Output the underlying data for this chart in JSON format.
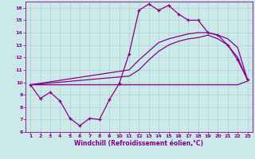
{
  "xlabel": "Windchill (Refroidissement éolien,°C)",
  "bg_color": "#cce9e9",
  "grid_color": "#b0d0d0",
  "line_color": "#880088",
  "xlim": [
    0.5,
    23.5
  ],
  "ylim": [
    6,
    16.5
  ],
  "xticks": [
    1,
    2,
    3,
    4,
    5,
    6,
    7,
    8,
    9,
    10,
    11,
    12,
    13,
    14,
    15,
    16,
    17,
    18,
    19,
    20,
    21,
    22,
    23
  ],
  "yticks": [
    6,
    7,
    8,
    9,
    10,
    11,
    12,
    13,
    14,
    15,
    16
  ],
  "series": {
    "windchill": {
      "x": [
        1,
        2,
        3,
        4,
        5,
        6,
        7,
        8,
        9,
        10,
        11,
        12,
        13,
        14,
        15,
        16,
        17,
        18,
        19,
        20,
        21,
        22,
        23
      ],
      "y": [
        9.8,
        8.7,
        9.2,
        8.5,
        7.1,
        6.5,
        7.1,
        7.0,
        8.6,
        9.9,
        12.3,
        15.8,
        16.3,
        15.8,
        16.2,
        15.5,
        15.0,
        15.0,
        14.0,
        13.8,
        13.0,
        11.8,
        10.2
      ]
    },
    "flat": {
      "x": [
        1,
        10,
        11,
        22,
        23
      ],
      "y": [
        9.8,
        9.8,
        9.8,
        9.8,
        10.1
      ]
    },
    "temp_upper": {
      "x": [
        1,
        11,
        12,
        13,
        14,
        15,
        16,
        17,
        18,
        19,
        20,
        21,
        22,
        23
      ],
      "y": [
        9.8,
        11.0,
        11.8,
        12.5,
        13.2,
        13.5,
        13.7,
        13.9,
        14.0,
        14.0,
        13.8,
        13.5,
        12.8,
        10.2
      ]
    },
    "temp_lower": {
      "x": [
        1,
        11,
        12,
        13,
        14,
        15,
        16,
        17,
        18,
        19,
        20,
        21,
        22,
        23
      ],
      "y": [
        9.8,
        10.5,
        11.0,
        11.8,
        12.5,
        13.0,
        13.3,
        13.5,
        13.6,
        13.8,
        13.5,
        13.0,
        12.0,
        10.2
      ]
    }
  }
}
